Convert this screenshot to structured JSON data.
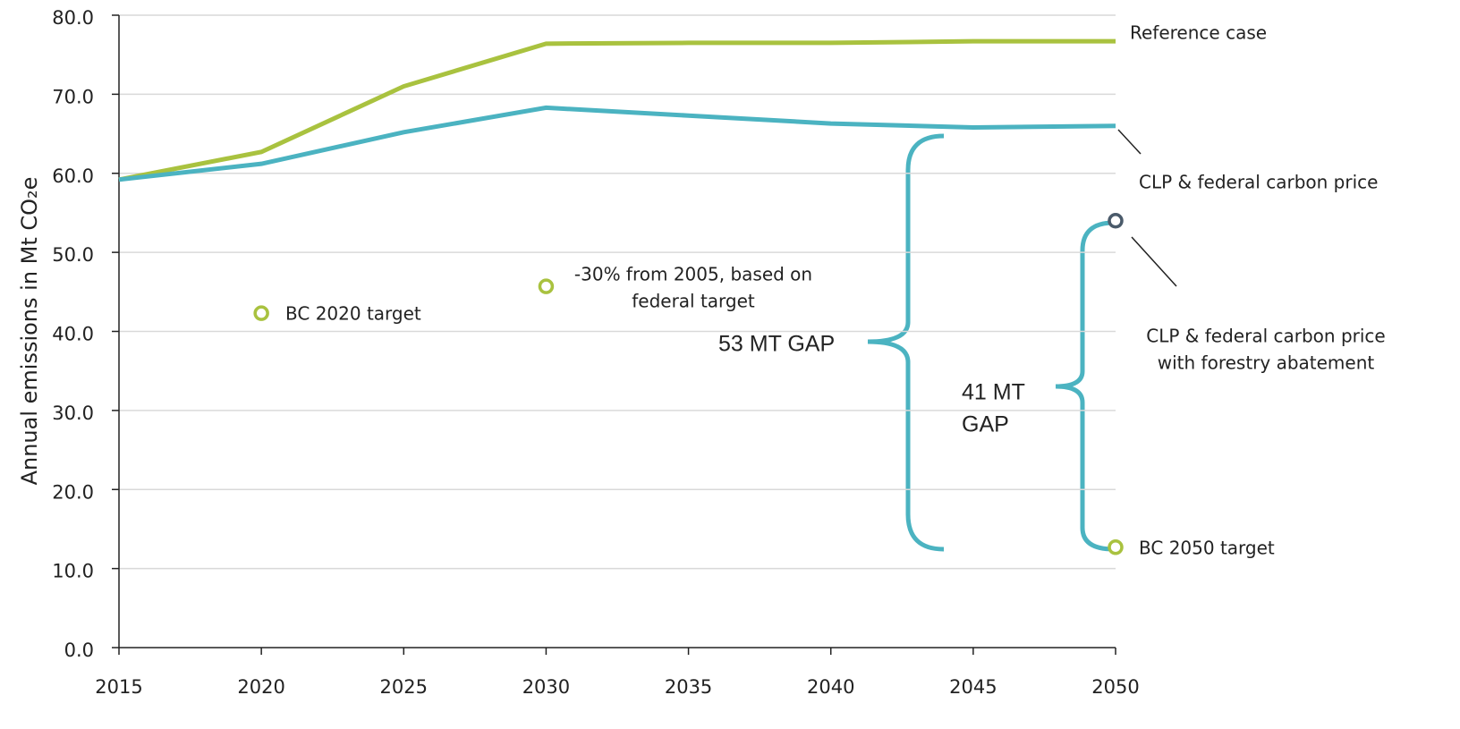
{
  "chart_data": {
    "type": "line",
    "y_label": "Annual emissions in Mt CO₂e",
    "x": [
      2015,
      2020,
      2025,
      2030,
      2035,
      2040,
      2045,
      2050
    ],
    "xlim": [
      2015,
      2050
    ],
    "xticks": [
      2015,
      2020,
      2025,
      2030,
      2035,
      2040,
      2045,
      2050
    ],
    "ylim": [
      0,
      80
    ],
    "yticks": [
      {
        "value": 0,
        "label": "0.0"
      },
      {
        "value": 10,
        "label": "10.0"
      },
      {
        "value": 20,
        "label": "20.0"
      },
      {
        "value": 30,
        "label": "30.0"
      },
      {
        "value": 40,
        "label": "40.0"
      },
      {
        "value": 50,
        "label": "50.0"
      },
      {
        "value": 60,
        "label": "60.0"
      },
      {
        "value": 70,
        "label": "70.0"
      },
      {
        "value": 80,
        "label": "80.0"
      }
    ],
    "grid": true,
    "series": [
      {
        "name": "Reference case",
        "color": "#a9c23f",
        "values": [
          59.2,
          62.7,
          71.0,
          76.4,
          76.5,
          76.5,
          76.7,
          76.7
        ]
      },
      {
        "name": "CLP & federal carbon price",
        "color": "#4bb3c1",
        "values": [
          59.2,
          61.2,
          65.2,
          68.3,
          67.3,
          66.3,
          65.8,
          66.0
        ]
      }
    ],
    "points": [
      {
        "label": [
          "BC 2020 target"
        ],
        "x": 2020,
        "y": 42.3,
        "color": "#a9c23f"
      },
      {
        "label": [
          "-30% from 2005, based on",
          "federal target"
        ],
        "x": 2030,
        "y": 45.7,
        "color": "#a9c23f"
      },
      {
        "label": [
          "CLP & federal carbon price",
          "with forestry abatement"
        ],
        "x": 2050,
        "y": 54.0,
        "color": "#4a5a6a"
      },
      {
        "label": [
          "BC 2050 target"
        ],
        "x": 2050,
        "y": 12.7,
        "color": "#a9c23f"
      }
    ],
    "annotations": [
      [
        "53 MT GAP"
      ],
      [
        "41 MT",
        "GAP"
      ]
    ]
  }
}
